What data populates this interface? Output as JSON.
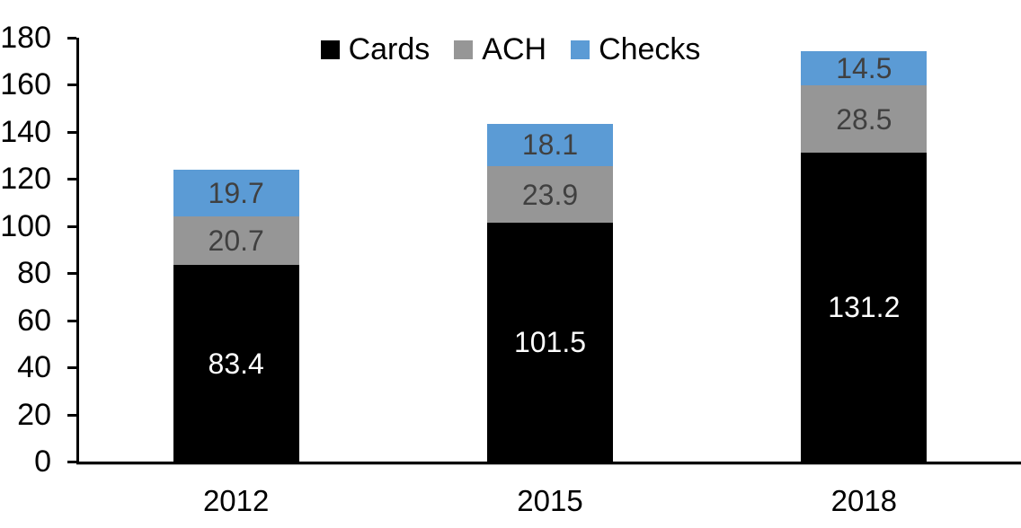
{
  "chart_data": {
    "type": "bar",
    "stacked": true,
    "title": "",
    "categories": [
      "2012",
      "2015",
      "2018"
    ],
    "series": [
      {
        "name": "Cards",
        "color": "#000000",
        "label_color": "#ffffff",
        "values": [
          83.4,
          101.5,
          131.2
        ]
      },
      {
        "name": "ACH",
        "color": "#969696",
        "label_color": "#404040",
        "values": [
          20.7,
          23.9,
          28.5
        ]
      },
      {
        "name": "Checks",
        "color": "#5b9bd5",
        "label_color": "#404040",
        "values": [
          19.7,
          18.1,
          14.5
        ]
      }
    ],
    "totals": [
      123.8,
      143.5,
      174.2
    ],
    "xlabel": "",
    "ylabel": "",
    "ylim": [
      0,
      180
    ],
    "yticks": [
      0,
      20,
      40,
      60,
      80,
      100,
      120,
      140,
      160,
      180
    ],
    "grid": false,
    "legend_position": "top-center",
    "axis_color": "#000000"
  }
}
